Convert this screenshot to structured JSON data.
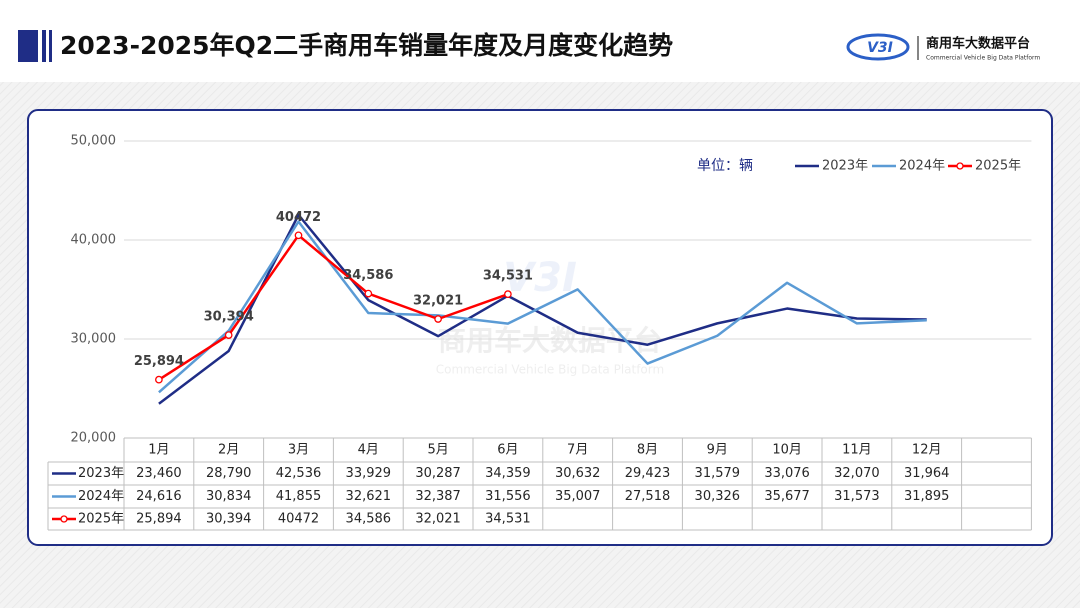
{
  "chart_data": {
    "type": "line",
    "title": "2023-2025年Q2二手商用车销量年度及月度变化趋势",
    "logo": {
      "mark": "V3I",
      "name": "商用车大数据平台",
      "subtitle": "Commercial Vehicle Big Data Platform"
    },
    "unit": "单位：辆",
    "categories": [
      "1月",
      "2月",
      "3月",
      "4月",
      "5月",
      "6月",
      "7月",
      "8月",
      "9月",
      "10月",
      "11月",
      "12月"
    ],
    "series": [
      {
        "name": "2023年",
        "color": "#1f2d86",
        "values": [
          23460,
          28790,
          42536,
          33929,
          30287,
          34359,
          30632,
          29423,
          31579,
          33076,
          32070,
          31964
        ],
        "value_labels": [
          "23,460",
          "28,790",
          "42,536",
          "33,929",
          "30,287",
          "34,359",
          "30,632",
          "29,423",
          "31,579",
          "33,076",
          "32,070",
          "31,964"
        ]
      },
      {
        "name": "2024年",
        "color": "#5b9bd5",
        "values": [
          24616,
          30834,
          41855,
          32621,
          32387,
          31556,
          35007,
          27518,
          30326,
          35677,
          31573,
          31895
        ],
        "value_labels": [
          "24,616",
          "30,834",
          "41,855",
          "32,621",
          "32,387",
          "31,556",
          "35,007",
          "27,518",
          "30,326",
          "35,677",
          "31,573",
          "31,895"
        ]
      },
      {
        "name": "2025年",
        "color": "#ff0000",
        "values": [
          25894,
          30394,
          40472,
          34586,
          32021,
          34531,
          null,
          null,
          null,
          null,
          null,
          null
        ],
        "value_labels": [
          "25,894",
          "30,394",
          "40472",
          "34,586",
          "32,021",
          "34,531",
          null,
          null,
          null,
          null,
          null,
          null
        ]
      }
    ],
    "ylim": [
      20000,
      50000
    ],
    "yticks": [
      {
        "value": 20000,
        "label": "20,000"
      },
      {
        "value": 30000,
        "label": "30,000"
      },
      {
        "value": 40000,
        "label": "40,000"
      },
      {
        "value": 50000,
        "label": "50,000"
      }
    ],
    "grid": true
  }
}
